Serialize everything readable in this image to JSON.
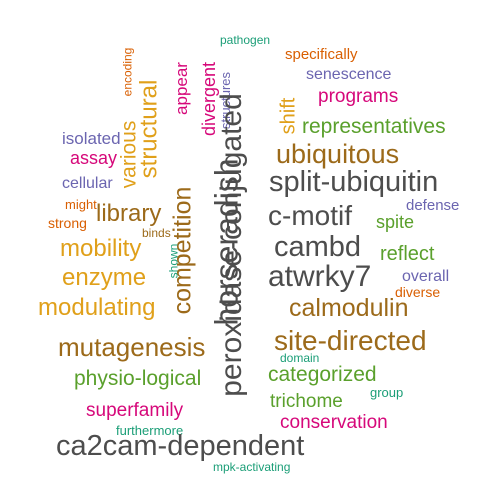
{
  "palette": {
    "dark_gray": "#4d4d4d",
    "brown": "#9c6a1a",
    "green": "#5aa02c",
    "magenta": "#d6087a",
    "orange_gold": "#e0a01a",
    "purple": "#6b65b0",
    "teal": "#1b9e77",
    "orange_red": "#d95f02"
  },
  "words": [
    {
      "text": "pathogen",
      "color": "#1b9e77"
    },
    {
      "text": "specifically",
      "color": "#d95f02"
    },
    {
      "text": "encoding",
      "color": "#d95f02"
    },
    {
      "text": "senescence",
      "color": "#6b65b0"
    },
    {
      "text": "programs",
      "color": "#d6087a"
    },
    {
      "text": "appear",
      "color": "#d6087a"
    },
    {
      "text": "divergent",
      "color": "#d6087a"
    },
    {
      "text": "structures",
      "color": "#6b65b0"
    },
    {
      "text": "structural",
      "color": "#e0a01a"
    },
    {
      "text": "various",
      "color": "#e0a01a"
    },
    {
      "text": "peroxidase-conjugated",
      "color": "#4d4d4d"
    },
    {
      "text": "shift",
      "color": "#e0a01a"
    },
    {
      "text": "representatives",
      "color": "#5aa02c"
    },
    {
      "text": "isolated",
      "color": "#6b65b0"
    },
    {
      "text": "assay",
      "color": "#d6087a"
    },
    {
      "text": "ubiquitous",
      "color": "#9c6a1a"
    },
    {
      "text": "cellular",
      "color": "#6b65b0"
    },
    {
      "text": "split-ubiquitin",
      "color": "#4d4d4d"
    },
    {
      "text": "horseradish",
      "color": "#4d4d4d"
    },
    {
      "text": "might",
      "color": "#d95f02"
    },
    {
      "text": "strong",
      "color": "#d95f02"
    },
    {
      "text": "library",
      "color": "#9c6a1a"
    },
    {
      "text": "binds",
      "color": "#9c6a1a"
    },
    {
      "text": "competition",
      "color": "#9c6a1a"
    },
    {
      "text": "c-motif",
      "color": "#4d4d4d"
    },
    {
      "text": "defense",
      "color": "#6b65b0"
    },
    {
      "text": "spite",
      "color": "#5aa02c"
    },
    {
      "text": "mobility",
      "color": "#e0a01a"
    },
    {
      "text": "cambd",
      "color": "#4d4d4d"
    },
    {
      "text": "reflect",
      "color": "#5aa02c"
    },
    {
      "text": "shown",
      "color": "#1b9e77"
    },
    {
      "text": "enzyme",
      "color": "#e0a01a"
    },
    {
      "text": "atwrky7",
      "color": "#4d4d4d"
    },
    {
      "text": "overall",
      "color": "#6b65b0"
    },
    {
      "text": "diverse",
      "color": "#d95f02"
    },
    {
      "text": "modulating",
      "color": "#e0a01a"
    },
    {
      "text": "calmodulin",
      "color": "#9c6a1a"
    },
    {
      "text": "site-directed",
      "color": "#9c6a1a"
    },
    {
      "text": "mutagenesis",
      "color": "#9c6a1a"
    },
    {
      "text": "domain",
      "color": "#1b9e77"
    },
    {
      "text": "categorized",
      "color": "#5aa02c"
    },
    {
      "text": "physio-logical",
      "color": "#5aa02c"
    },
    {
      "text": "group",
      "color": "#1b9e77"
    },
    {
      "text": "trichome",
      "color": "#5aa02c"
    },
    {
      "text": "superfamily",
      "color": "#d6087a"
    },
    {
      "text": "conservation",
      "color": "#d6087a"
    },
    {
      "text": "furthermore",
      "color": "#1b9e77"
    },
    {
      "text": "ca2cam-dependent",
      "color": "#4d4d4d"
    },
    {
      "text": "mpk-activating",
      "color": "#1b9e77"
    }
  ]
}
